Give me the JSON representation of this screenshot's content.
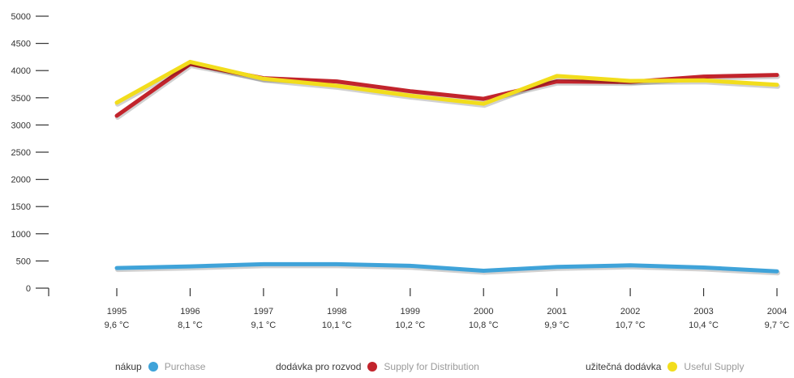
{
  "chart_data": {
    "type": "line",
    "categories": [
      "1995",
      "1996",
      "1997",
      "1998",
      "1999",
      "2000",
      "2001",
      "2002",
      "2003",
      "2004"
    ],
    "category_sublabels": [
      "9,6 °C",
      "8,1 °C",
      "9,1 °C",
      "10,1 °C",
      "10,2 °C",
      "10,8 °C",
      "9,9 °C",
      "10,7 °C",
      "10,4 °C",
      "9,7 °C"
    ],
    "yticks": [
      0,
      500,
      1000,
      1500,
      2000,
      2500,
      3000,
      3500,
      4000,
      4500,
      5000
    ],
    "ylim": [
      0,
      5000
    ],
    "grid": false,
    "legend_position": "bottom",
    "series": [
      {
        "key": "purchase",
        "name": "Purchase",
        "name_local": "nákup",
        "color": "#3fa3d9",
        "values": [
          370,
          400,
          440,
          440,
          410,
          320,
          390,
          420,
          380,
          310
        ]
      },
      {
        "key": "supply_distribution",
        "name": "Supply for Distribution",
        "name_local": "dodávka pro rozvod",
        "color": "#c2242c",
        "values": [
          3170,
          4120,
          3860,
          3800,
          3620,
          3480,
          3800,
          3790,
          3890,
          3920
        ]
      },
      {
        "key": "useful_supply",
        "name": "Useful Supply",
        "name_local": "užitečná dodávka",
        "color": "#f2dd1c",
        "values": [
          3410,
          4160,
          3850,
          3720,
          3540,
          3390,
          3900,
          3810,
          3820,
          3740
        ]
      }
    ]
  }
}
